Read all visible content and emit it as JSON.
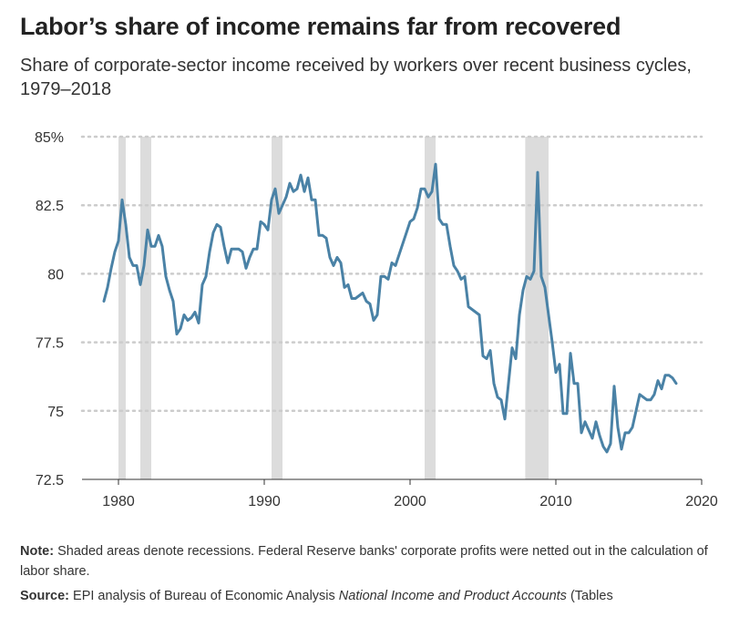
{
  "title": "Labor’s share of income remains far from recovered",
  "subtitle": "Share of corporate-sector income received by workers over recent business cycles, 1979–2018",
  "note": {
    "label": "Note:",
    "text": "Shaded areas denote recessions. Federal Reserve banks' corporate profits were netted out in the calculation of labor share."
  },
  "source": {
    "label": "Source:",
    "text": "EPI analysis of Bureau of Economic Analysis",
    "italic": "National Income and Product Accounts",
    "tail": "(Tables"
  },
  "colors": {
    "line": "#4a82a6",
    "recession": "#dcdcdc",
    "grid": "#cccccc",
    "axis": "#333333"
  },
  "chart_data": {
    "type": "line",
    "ylim": [
      72.5,
      85
    ],
    "xlim": [
      1977.5,
      2020
    ],
    "ytick_labels": [
      {
        "value": 85,
        "label": "85%"
      },
      {
        "value": 82.5,
        "label": "82.5"
      },
      {
        "value": 80,
        "label": "80"
      },
      {
        "value": 77.5,
        "label": "77.5"
      },
      {
        "value": 75,
        "label": "75"
      },
      {
        "value": 72.5,
        "label": "72.5"
      }
    ],
    "xtick_labels": [
      {
        "value": 1980,
        "label": "1980"
      },
      {
        "value": 1990,
        "label": "1990"
      },
      {
        "value": 2000,
        "label": "2000"
      },
      {
        "value": 2010,
        "label": "2010"
      },
      {
        "value": 2020,
        "label": "2020"
      }
    ],
    "grid": "horizontal dotted",
    "recessions": [
      [
        1980.0,
        1980.5
      ],
      [
        1981.5,
        1982.25
      ],
      [
        1990.5,
        1991.25
      ],
      [
        2001.0,
        2001.75
      ],
      [
        2007.9,
        2009.5
      ]
    ],
    "series": [
      {
        "x": [
          1979.0,
          1979.25,
          1979.5,
          1979.75,
          1980.0,
          1980.25,
          1980.5,
          1980.75,
          1981.0,
          1981.25,
          1981.5,
          1981.75,
          1982.0,
          1982.25,
          1982.5,
          1982.75,
          1983.0,
          1983.25,
          1983.5,
          1983.75,
          1984.0,
          1984.25,
          1984.5,
          1984.75,
          1985.0,
          1985.25,
          1985.5,
          1985.75,
          1986.0,
          1986.25,
          1986.5,
          1986.75,
          1987.0,
          1987.25,
          1987.5,
          1987.75,
          1988.0,
          1988.25,
          1988.5,
          1988.75,
          1989.0,
          1989.25,
          1989.5,
          1989.75,
          1990.0,
          1990.25,
          1990.5,
          1990.75,
          1991.0,
          1991.25,
          1991.5,
          1991.75,
          1992.0,
          1992.25,
          1992.5,
          1992.75,
          1993.0,
          1993.25,
          1993.5,
          1993.75,
          1994.0,
          1994.25,
          1994.5,
          1994.75,
          1995.0,
          1995.25,
          1995.5,
          1995.75,
          1996.0,
          1996.25,
          1996.5,
          1996.75,
          1997.0,
          1997.25,
          1997.5,
          1997.75,
          1998.0,
          1998.25,
          1998.5,
          1998.75,
          1999.0,
          1999.25,
          1999.5,
          1999.75,
          2000.0,
          2000.25,
          2000.5,
          2000.75,
          2001.0,
          2001.25,
          2001.5,
          2001.75,
          2002.0,
          2002.25,
          2002.5,
          2002.75,
          2003.0,
          2003.25,
          2003.5,
          2003.75,
          2004.0,
          2004.25,
          2004.5,
          2004.75,
          2005.0,
          2005.25,
          2005.5,
          2005.75,
          2006.0,
          2006.25,
          2006.5,
          2006.75,
          2007.0,
          2007.25,
          2007.5,
          2007.75,
          2008.0,
          2008.25,
          2008.5,
          2008.75,
          2009.0,
          2009.25,
          2009.5,
          2009.75,
          2010.0,
          2010.25,
          2010.5,
          2010.75,
          2011.0,
          2011.25,
          2011.5,
          2011.75,
          2012.0,
          2012.25,
          2012.5,
          2012.75,
          2013.0,
          2013.25,
          2013.5,
          2013.75,
          2014.0,
          2014.25,
          2014.5,
          2014.75,
          2015.0,
          2015.25,
          2015.5,
          2015.75,
          2016.0,
          2016.25,
          2016.5,
          2016.75,
          2017.0,
          2017.25,
          2017.5,
          2017.75,
          2018.0,
          2018.25
        ],
        "values": [
          79.0,
          79.5,
          80.2,
          80.8,
          81.2,
          82.7,
          81.8,
          80.6,
          80.3,
          80.3,
          79.6,
          80.3,
          81.6,
          81.0,
          81.0,
          81.4,
          81.0,
          79.9,
          79.4,
          79.0,
          77.8,
          78.0,
          78.5,
          78.3,
          78.4,
          78.6,
          78.2,
          79.6,
          79.9,
          80.8,
          81.5,
          81.8,
          81.7,
          81.0,
          80.4,
          80.9,
          80.9,
          80.9,
          80.8,
          80.2,
          80.6,
          80.9,
          80.9,
          81.9,
          81.8,
          81.6,
          82.7,
          83.1,
          82.2,
          82.5,
          82.8,
          83.3,
          83.0,
          83.1,
          83.6,
          83.0,
          83.5,
          82.7,
          82.7,
          81.4,
          81.4,
          81.3,
          80.6,
          80.3,
          80.6,
          80.4,
          79.5,
          79.6,
          79.1,
          79.1,
          79.2,
          79.3,
          79.0,
          78.9,
          78.3,
          78.5,
          79.9,
          79.9,
          79.8,
          80.4,
          80.3,
          80.7,
          81.1,
          81.5,
          81.9,
          82.0,
          82.4,
          83.1,
          83.1,
          82.8,
          83.0,
          84.0,
          82.0,
          81.8,
          81.8,
          81.0,
          80.3,
          80.1,
          79.8,
          79.9,
          78.8,
          78.7,
          78.6,
          78.5,
          77.0,
          76.9,
          77.2,
          76.0,
          75.5,
          75.4,
          74.7,
          76.0,
          77.3,
          76.9,
          78.5,
          79.4,
          79.9,
          79.8,
          80.1,
          83.7,
          79.9,
          79.5,
          78.5,
          77.5,
          76.4,
          76.7,
          74.9,
          74.9,
          77.1,
          76.0,
          76.0,
          74.2,
          74.6,
          74.3,
          74.0,
          74.6,
          74.1,
          73.7,
          73.5,
          73.8,
          75.9,
          74.4,
          73.6,
          74.2,
          74.2,
          74.4,
          75.0,
          75.6,
          75.5,
          75.4,
          75.4,
          75.6,
          76.1,
          75.8,
          76.3,
          76.3,
          76.2,
          76.0
        ]
      }
    ]
  }
}
